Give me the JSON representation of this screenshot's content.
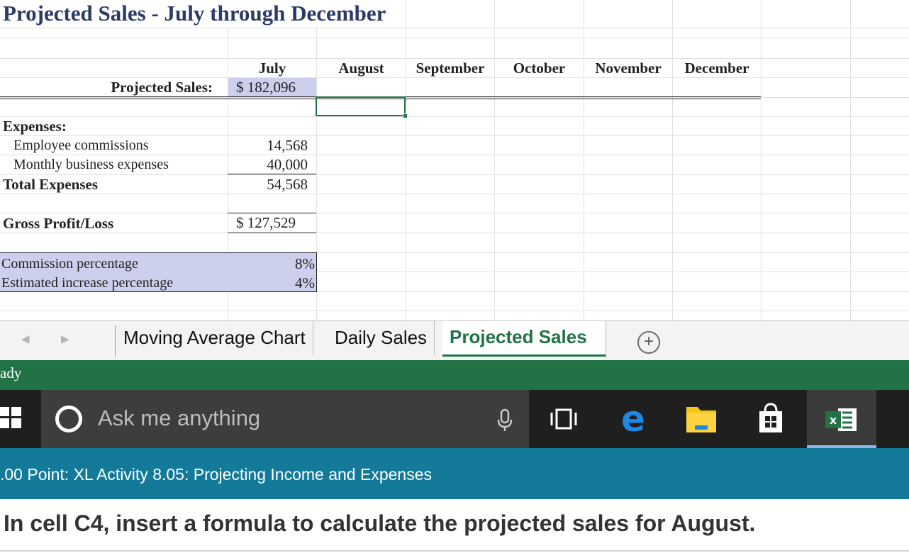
{
  "sheet": {
    "title": "Projected Sales - July through December",
    "months": [
      "July",
      "August",
      "September",
      "October",
      "November",
      "December"
    ],
    "projected_sales_label": "Projected Sales:",
    "projected_sales_july": "$  182,096",
    "expenses_label": "Expenses:",
    "employee_commissions_label": "Employee commissions",
    "employee_commissions_july": "14,568",
    "monthly_business_label": "Monthly business expenses",
    "monthly_business_july": "40,000",
    "total_expenses_label": "Total Expenses",
    "total_expenses_july": "54,568",
    "gross_profit_label": "Gross Profit/Loss",
    "gross_profit_july": "$  127,529",
    "commission_pct_label": "Commission percentage",
    "commission_pct_value": "8%",
    "increase_pct_label": "Estimated increase percentage",
    "increase_pct_value": "4%",
    "selected_cell": "C4"
  },
  "tabs": {
    "items": [
      "Moving Average Chart",
      "Daily Sales",
      "Projected Sales"
    ],
    "active": "Projected Sales",
    "add_icon": "plus-circle-icon",
    "prev_icon": "scroll-left-icon",
    "next_icon": "scroll-right-icon"
  },
  "status": {
    "text": "ady"
  },
  "taskbar": {
    "search_placeholder": "Ask me anything",
    "icons": [
      "windows-start-icon",
      "cortana-icon",
      "microphone-icon",
      "task-view-icon",
      "edge-icon",
      "file-explorer-icon",
      "store-icon",
      "excel-icon"
    ]
  },
  "question": {
    "title": ".00 Point: XL Activity 8.05: Projecting Income and Expenses",
    "instruction": "In cell C4, insert a formula to calculate the projected sales for August."
  },
  "colors": {
    "excel_green": "#217346",
    "lavender_fill": "#cdd0ec",
    "title_blue": "#2b3a67",
    "banner_teal": "#137a9a",
    "taskbar_dark": "#1f1f1f"
  }
}
